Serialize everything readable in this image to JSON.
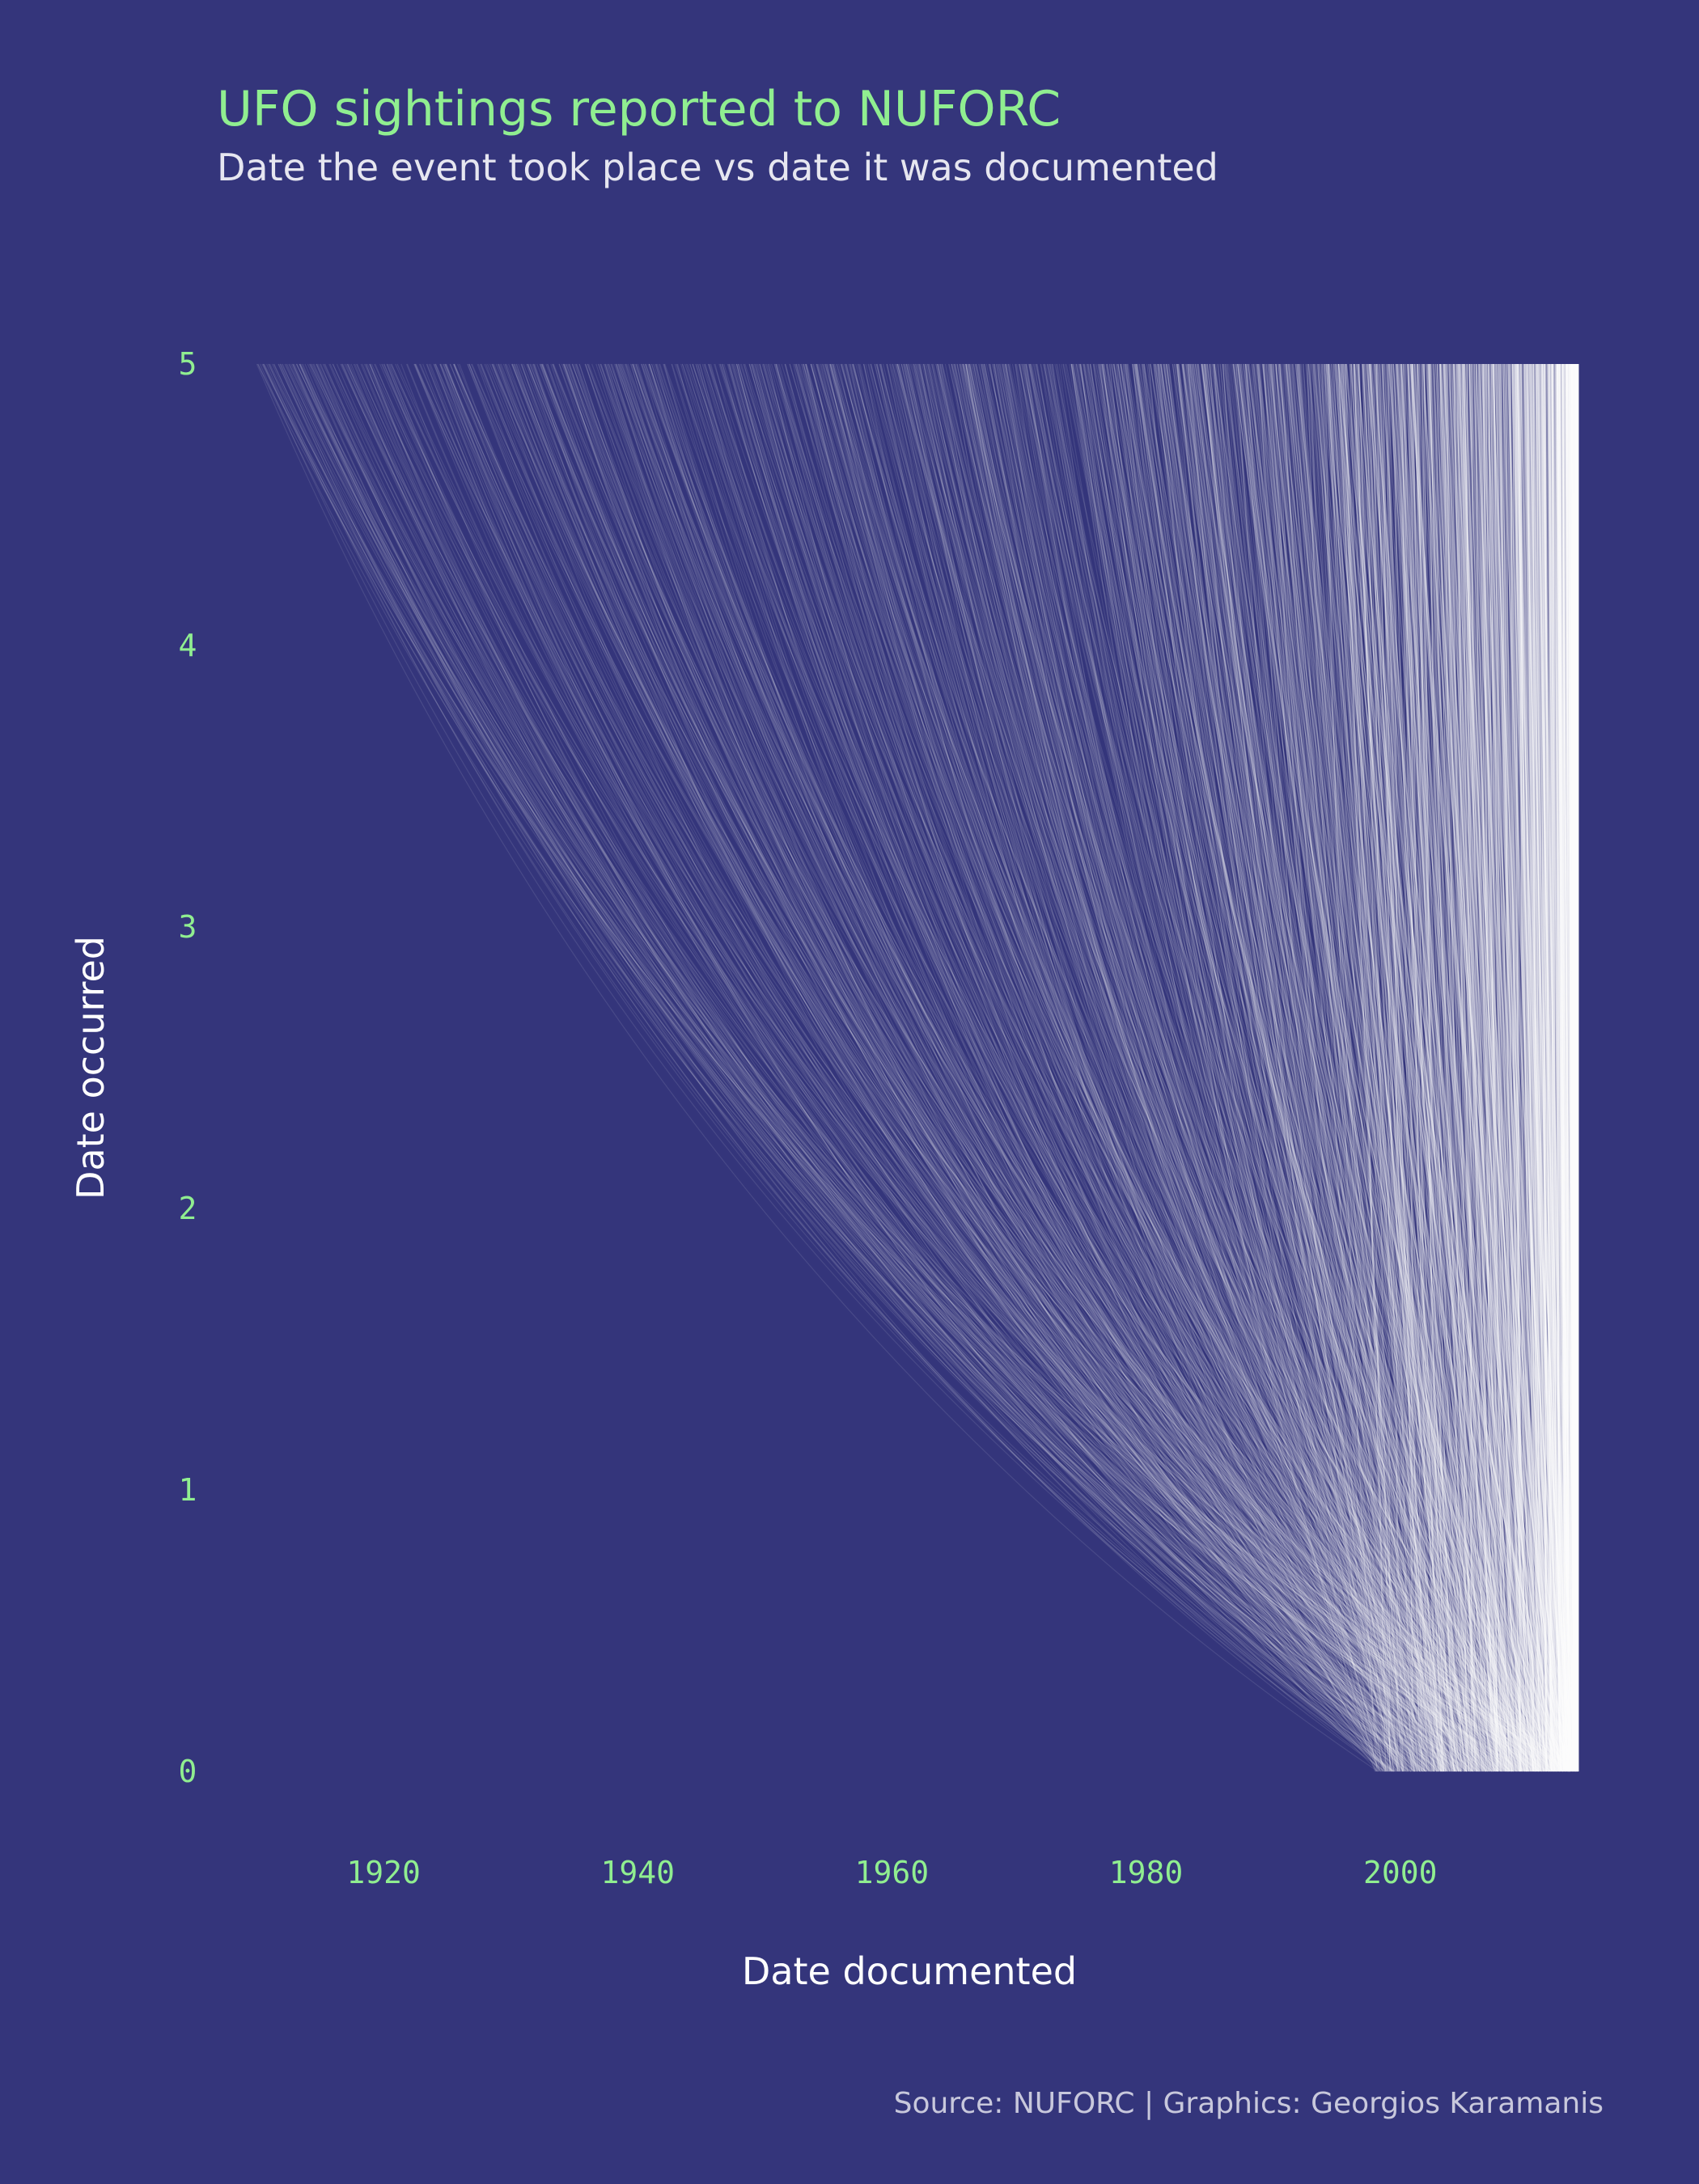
{
  "chart_data": {
    "type": "line",
    "title": "UFO sightings reported to NUFORC",
    "subtitle": "Date the event took place vs date it was documented",
    "xlabel": "Date documented",
    "ylabel": "Date occurred",
    "caption": "Source: NUFORC | Graphics: Georgios Karamanis",
    "x_ticks": [
      "1920",
      "1940",
      "1960",
      "1980",
      "2000"
    ],
    "x_tick_values": [
      1920,
      1940,
      1960,
      1980,
      2000
    ],
    "y_ticks": [
      "0",
      "1",
      "2",
      "3",
      "4",
      "5"
    ],
    "y_tick_values": [
      0,
      1,
      2,
      3,
      4,
      5
    ],
    "xlim": [
      1907,
      2016
    ],
    "ylim": [
      0,
      5
    ],
    "grid": false,
    "legend": "none",
    "description_of_marks": "Each thin curve connects the date a sighting occurred (top, y=5) to the date it was documented (bottom, y=0); documentation dates cluster between 1998 and 2014.",
    "occurred_year_range": [
      1910,
      2014
    ],
    "documented_year_range": [
      1998,
      2014
    ]
  },
  "colors": {
    "background": "#34357b",
    "accent": "#90ee90",
    "curves": "#ffffff"
  }
}
